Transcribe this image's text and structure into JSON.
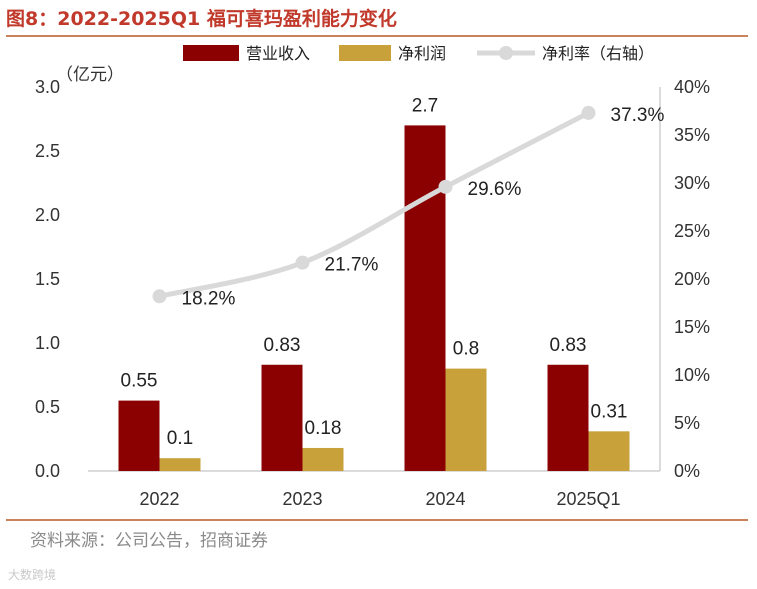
{
  "title": "图8：2022-2025Q1 福可喜玛盈利能力变化",
  "source": "资料来源：公司公告，招商证券",
  "watermark": "大数跨境",
  "colors": {
    "revenue": "#8b0000",
    "profit": "#c9a13b",
    "margin": "#d9d9d9",
    "title": "#c0392b",
    "rule": "#c9825a"
  },
  "chart_data": {
    "type": "bar",
    "categories": [
      "2022",
      "2023",
      "2024",
      "2025Q1"
    ],
    "series": [
      {
        "name": "营业收入",
        "type": "bar",
        "axis": "left",
        "values": [
          0.55,
          0.83,
          2.7,
          0.83
        ],
        "labels": [
          "0.55",
          "0.83",
          "2.7",
          "0.83"
        ]
      },
      {
        "name": "净利润",
        "type": "bar",
        "axis": "left",
        "values": [
          0.1,
          0.18,
          0.8,
          0.31
        ],
        "labels": [
          "0.1",
          "0.18",
          "0.8",
          "0.31"
        ]
      },
      {
        "name": "净利率（右轴）",
        "type": "line",
        "axis": "right",
        "values": [
          18.2,
          21.7,
          29.6,
          37.3
        ],
        "labels": [
          "18.2%",
          "21.7%",
          "29.6%",
          "37.3%"
        ]
      }
    ],
    "yunit": "（亿元）",
    "ylim": [
      0,
      3.0
    ],
    "yticks": [
      "0.0",
      "0.5",
      "1.0",
      "1.5",
      "2.0",
      "2.5",
      "3.0"
    ],
    "y2lim": [
      0,
      40
    ],
    "y2ticks": [
      "0%",
      "5%",
      "10%",
      "15%",
      "20%",
      "25%",
      "30%",
      "35%",
      "40%"
    ],
    "legend_position": "top",
    "grid": false
  }
}
